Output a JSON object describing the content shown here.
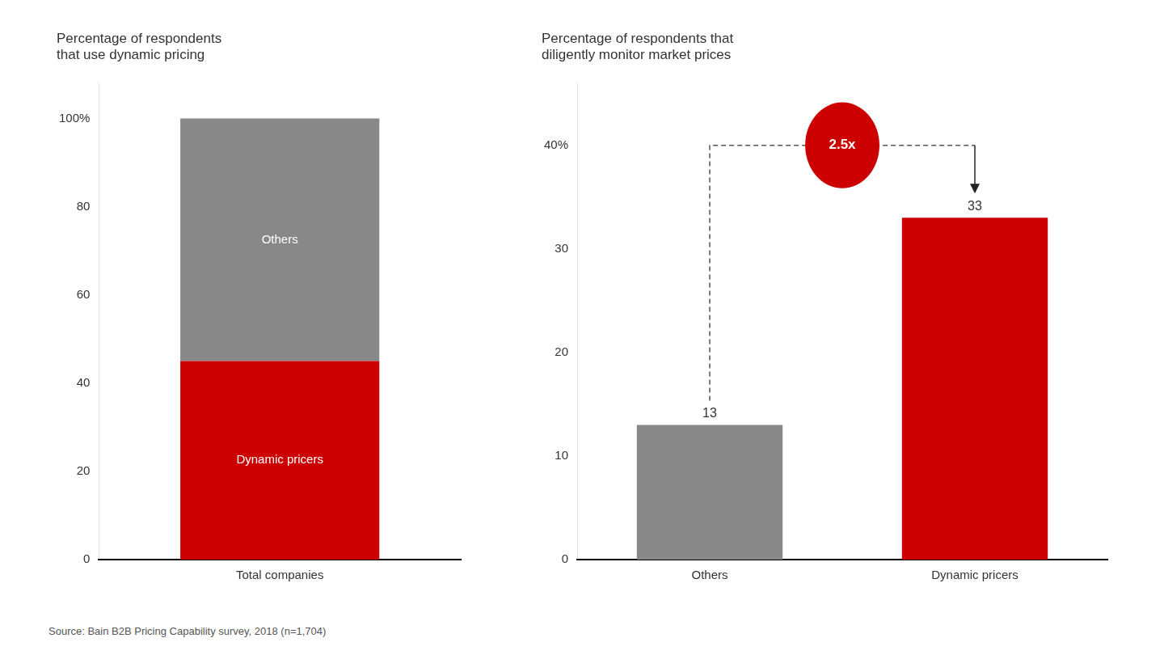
{
  "chart_data": [
    {
      "type": "bar",
      "title": "Percentage of respondents\nthat use dynamic pricing",
      "categories": [
        "Total companies"
      ],
      "series": [
        {
          "name": "Dynamic pricers",
          "color": "#cc0000",
          "values": [
            45
          ]
        },
        {
          "name": "Others",
          "color": "#888888",
          "values": [
            55
          ]
        }
      ],
      "stacked": true,
      "ylim": [
        0,
        108
      ],
      "yticks": [
        0,
        20,
        40,
        60,
        80,
        {
          "value": 100,
          "label": "100%"
        }
      ],
      "grid": false
    },
    {
      "type": "bar",
      "title": "Percentage of respondents that\ndiligently monitor market prices",
      "categories": [
        "Others",
        "Dynamic pricers"
      ],
      "values": [
        13,
        33
      ],
      "colors": [
        "#888888",
        "#cc0000"
      ],
      "value_labels": [
        "13",
        "33"
      ],
      "data_labels": true,
      "ylim": [
        0,
        46
      ],
      "yticks": [
        0,
        10,
        20,
        30,
        {
          "value": 40,
          "label": "40%"
        }
      ],
      "grid": false,
      "annotations": [
        {
          "text": "2.5x",
          "y": 40,
          "color": "#cc0000"
        }
      ]
    }
  ],
  "source": "Source: Bain B2B Pricing Capability survey, 2018 (n=1,704)"
}
